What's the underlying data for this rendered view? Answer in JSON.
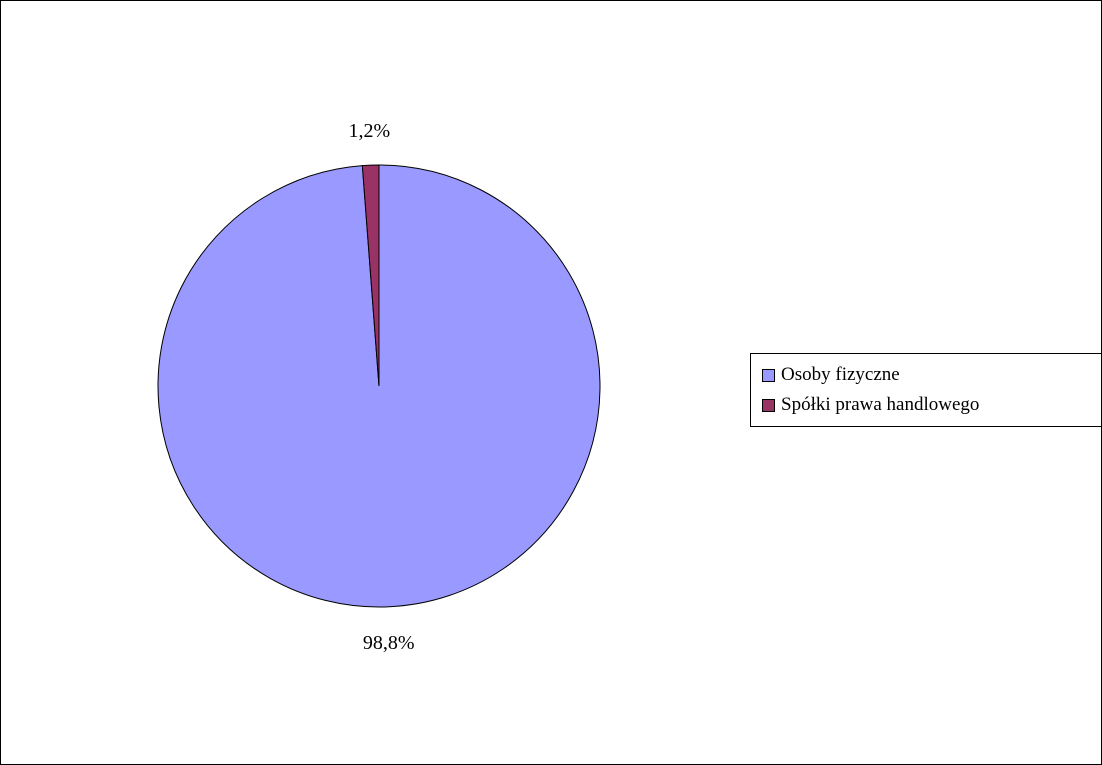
{
  "chart_data": {
    "type": "pie",
    "title": "",
    "categories": [
      "Osoby fizyczne",
      "Spółki prawa handlowego"
    ],
    "values": [
      98.8,
      1.2
    ],
    "data_labels": [
      "98,8%",
      "1,2%"
    ],
    "colors": [
      "#9999ff",
      "#993366"
    ],
    "legend_position": "right",
    "legend": [
      {
        "label": "Osoby fizyczne",
        "color": "#9999ff"
      },
      {
        "label": "Spółki prawa handlowego",
        "color": "#993366"
      }
    ]
  }
}
